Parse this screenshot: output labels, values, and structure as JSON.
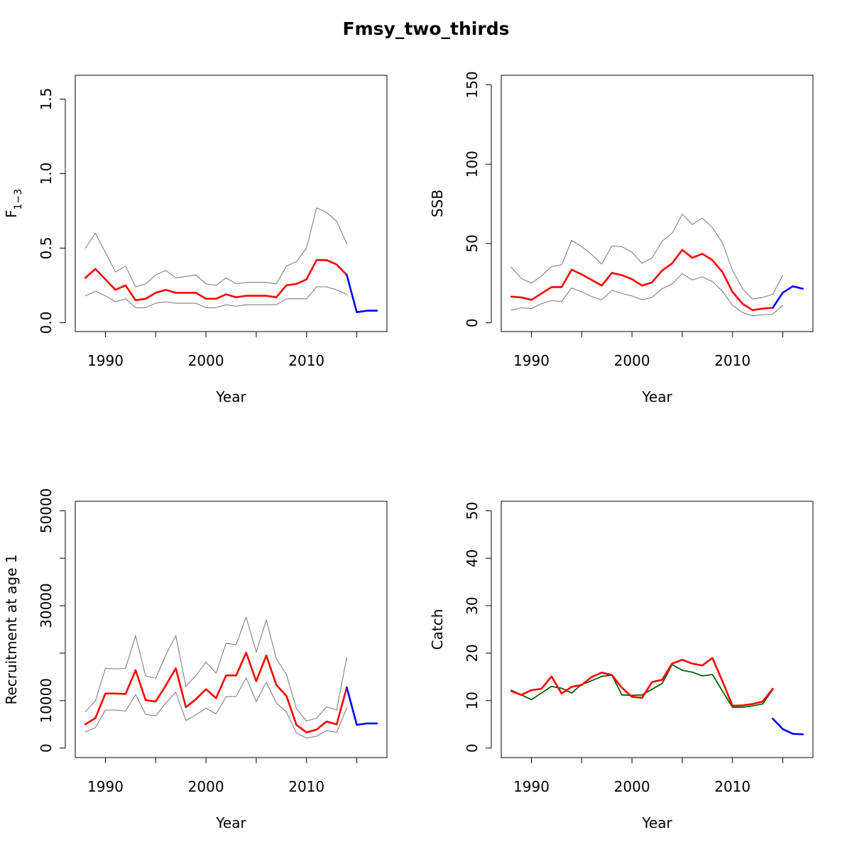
{
  "title": "Fmsy_two_thirds",
  "colors": {
    "estimate": "#ff0000",
    "ci": "#808080",
    "projection": "#0000ff",
    "observed_catch": "#006400",
    "axis": "#000000"
  },
  "chart_data": [
    {
      "type": "line",
      "xlabel": "Year",
      "ylabel": "F",
      "ylabel_subscript": "1−3",
      "xlim": [
        1987,
        2018
      ],
      "ylim": [
        -0.06,
        1.66
      ],
      "xticks": [
        1990,
        1995,
        2000,
        2005,
        2010,
        2015
      ],
      "xtick_labels": [
        "1990",
        "",
        "2000",
        "",
        "2010",
        ""
      ],
      "yticks": [
        0.0,
        0.5,
        1.0,
        1.5
      ],
      "ytick_labels": [
        "0.0",
        "0.5",
        "1.0",
        "1.5"
      ],
      "series": [
        {
          "role": "estimate",
          "x": [
            1988,
            1989,
            1990,
            1991,
            1992,
            1993,
            1994,
            1995,
            1996,
            1997,
            1998,
            1999,
            2000,
            2001,
            2002,
            2003,
            2004,
            2005,
            2006,
            2007,
            2008,
            2009,
            2010,
            2011,
            2012,
            2013,
            2014
          ],
          "values": [
            0.3,
            0.36,
            0.29,
            0.22,
            0.25,
            0.15,
            0.16,
            0.2,
            0.22,
            0.2,
            0.2,
            0.2,
            0.16,
            0.16,
            0.19,
            0.17,
            0.18,
            0.18,
            0.18,
            0.17,
            0.25,
            0.26,
            0.29,
            0.42,
            0.42,
            0.39,
            0.32
          ]
        },
        {
          "role": "ci-upper",
          "x": [
            1988,
            1989,
            1990,
            1991,
            1992,
            1993,
            1994,
            1995,
            1996,
            1997,
            1998,
            1999,
            2000,
            2001,
            2002,
            2003,
            2004,
            2005,
            2006,
            2007,
            2008,
            2009,
            2010,
            2011,
            2012,
            2013,
            2014
          ],
          "values": [
            0.5,
            0.6,
            0.47,
            0.34,
            0.38,
            0.24,
            0.26,
            0.32,
            0.35,
            0.3,
            0.31,
            0.32,
            0.26,
            0.25,
            0.3,
            0.26,
            0.27,
            0.27,
            0.27,
            0.26,
            0.38,
            0.41,
            0.5,
            0.77,
            0.74,
            0.68,
            0.53
          ]
        },
        {
          "role": "ci-lower",
          "x": [
            1988,
            1989,
            1990,
            1991,
            1992,
            1993,
            1994,
            1995,
            1996,
            1997,
            1998,
            1999,
            2000,
            2001,
            2002,
            2003,
            2004,
            2005,
            2006,
            2007,
            2008,
            2009,
            2010,
            2011,
            2012,
            2013,
            2014
          ],
          "values": [
            0.18,
            0.21,
            0.18,
            0.14,
            0.16,
            0.1,
            0.1,
            0.13,
            0.14,
            0.13,
            0.13,
            0.13,
            0.1,
            0.1,
            0.12,
            0.11,
            0.12,
            0.12,
            0.12,
            0.12,
            0.16,
            0.16,
            0.16,
            0.24,
            0.24,
            0.22,
            0.19
          ]
        },
        {
          "role": "projection",
          "x": [
            2014,
            2015,
            2016,
            2017
          ],
          "values": [
            0.32,
            0.07,
            0.08,
            0.08
          ]
        }
      ]
    },
    {
      "type": "line",
      "xlabel": "Year",
      "ylabel": "SSB",
      "xlim": [
        1987,
        2018
      ],
      "ylim": [
        -5.5,
        156
      ],
      "xticks": [
        1990,
        1995,
        2000,
        2005,
        2010,
        2015
      ],
      "xtick_labels": [
        "1990",
        "",
        "2000",
        "",
        "2010",
        ""
      ],
      "yticks": [
        0,
        50,
        100,
        150
      ],
      "ytick_labels": [
        "0",
        "50",
        "100",
        "150"
      ],
      "series": [
        {
          "role": "estimate",
          "x": [
            1988,
            1989,
            1990,
            1991,
            1992,
            1993,
            1994,
            1995,
            1996,
            1997,
            1998,
            1999,
            2000,
            2001,
            2002,
            2003,
            2004,
            2005,
            2006,
            2007,
            2008,
            2009,
            2010,
            2011,
            2012,
            2013,
            2014
          ],
          "values": [
            16.5,
            16,
            14.5,
            18.5,
            22.5,
            22.5,
            33.5,
            30.5,
            27,
            23.5,
            31.5,
            30,
            27.5,
            23.5,
            25.5,
            33,
            37.5,
            46,
            41,
            43.5,
            39.5,
            32,
            19.5,
            12,
            8,
            9,
            9.5
          ]
        },
        {
          "role": "ci-upper",
          "x": [
            1988,
            1989,
            1990,
            1991,
            1992,
            1993,
            1994,
            1995,
            1996,
            1997,
            1998,
            1999,
            2000,
            2001,
            2002,
            2003,
            2004,
            2005,
            2006,
            2007,
            2008,
            2009,
            2010,
            2011,
            2012,
            2013,
            2014,
            2015
          ],
          "values": [
            35,
            28,
            25,
            29.5,
            35.5,
            36.5,
            52,
            48,
            43,
            37,
            48.5,
            48,
            44.5,
            37.5,
            41,
            51.5,
            56.5,
            68.5,
            62,
            66,
            60,
            50.5,
            33,
            21.5,
            15,
            16,
            18,
            30
          ]
        },
        {
          "role": "ci-lower",
          "x": [
            1988,
            1989,
            1990,
            1991,
            1992,
            1993,
            1994,
            1995,
            1996,
            1997,
            1998,
            1999,
            2000,
            2001,
            2002,
            2003,
            2004,
            2005,
            2006,
            2007,
            2008,
            2009,
            2010,
            2011,
            2012,
            2013,
            2014,
            2015
          ],
          "values": [
            8,
            9.5,
            9,
            12,
            14,
            13.5,
            22,
            19.5,
            16.5,
            14.5,
            20.5,
            18.5,
            17,
            14.5,
            16,
            21.5,
            24.5,
            31,
            27,
            29,
            26,
            20,
            11,
            6.5,
            4.5,
            5,
            5.5,
            11
          ]
        },
        {
          "role": "projection",
          "x": [
            2014,
            2015,
            2016,
            2017
          ],
          "values": [
            9.5,
            19,
            23,
            21.5
          ]
        }
      ]
    },
    {
      "type": "line",
      "xlabel": "Year",
      "ylabel": "Recruitment at age 1",
      "xlim": [
        1987,
        2018
      ],
      "ylim": [
        -2000,
        52000
      ],
      "xticks": [
        1990,
        1995,
        2000,
        2005,
        2010,
        2015
      ],
      "xtick_labels": [
        "1990",
        "",
        "2000",
        "",
        "2010",
        ""
      ],
      "yticks": [
        0,
        10000,
        20000,
        30000,
        40000,
        50000
      ],
      "ytick_labels": [
        "0",
        "10000",
        "",
        "30000",
        "",
        "50000"
      ],
      "series": [
        {
          "role": "estimate",
          "x": [
            1988,
            1989,
            1990,
            1991,
            1992,
            1993,
            1994,
            1995,
            1996,
            1997,
            1998,
            1999,
            2000,
            2001,
            2002,
            2003,
            2004,
            2005,
            2006,
            2007,
            2008,
            2009,
            2010,
            2011,
            2012,
            2013,
            2014
          ],
          "values": [
            5000,
            6300,
            11500,
            11500,
            11400,
            16400,
            10100,
            9800,
            13200,
            16800,
            8600,
            10300,
            12400,
            10500,
            15300,
            15300,
            20100,
            14100,
            19500,
            13300,
            11000,
            4900,
            3300,
            3900,
            5600,
            5000,
            12800
          ]
        },
        {
          "role": "ci-upper",
          "x": [
            1988,
            1989,
            1990,
            1991,
            1992,
            1993,
            1994,
            1995,
            1996,
            1997,
            1998,
            1999,
            2000,
            2001,
            2002,
            2003,
            2004,
            2005,
            2006,
            2007,
            2008,
            2009,
            2010,
            2011,
            2012,
            2013,
            2014
          ],
          "values": [
            7700,
            9900,
            16800,
            16700,
            16800,
            23700,
            15200,
            14700,
            19600,
            23700,
            13000,
            15300,
            18100,
            15800,
            22100,
            21800,
            27600,
            20200,
            27000,
            18800,
            15500,
            8300,
            5700,
            6300,
            8700,
            8000,
            19100
          ]
        },
        {
          "role": "ci-lower",
          "x": [
            1988,
            1989,
            1990,
            1991,
            1992,
            1993,
            1994,
            1995,
            1996,
            1997,
            1998,
            1999,
            2000,
            2001,
            2002,
            2003,
            2004,
            2005,
            2006,
            2007,
            2008,
            2009,
            2010,
            2011,
            2012,
            2013,
            2014
          ],
          "values": [
            3400,
            4300,
            8000,
            8000,
            7800,
            11300,
            7100,
            6800,
            9500,
            11800,
            5800,
            7000,
            8400,
            7200,
            10800,
            10900,
            14800,
            9800,
            13900,
            9500,
            7600,
            3200,
            2100,
            2500,
            3700,
            3300,
            8500
          ]
        },
        {
          "role": "projection",
          "x": [
            2014,
            2015,
            2016,
            2017
          ],
          "values": [
            12800,
            4900,
            5200,
            5200
          ]
        }
      ]
    },
    {
      "type": "line",
      "xlabel": "Year",
      "ylabel": "Catch",
      "xlim": [
        1987,
        2018
      ],
      "ylim": [
        -2,
        52
      ],
      "xticks": [
        1990,
        1995,
        2000,
        2005,
        2010,
        2015
      ],
      "xtick_labels": [
        "1990",
        "",
        "2000",
        "",
        "2010",
        ""
      ],
      "yticks": [
        0,
        10,
        20,
        30,
        40,
        50
      ],
      "ytick_labels": [
        "0",
        "10",
        "20",
        "30",
        "40",
        "50"
      ],
      "series": [
        {
          "role": "observed",
          "x": [
            1988,
            1989,
            1990,
            1991,
            1992,
            1993,
            1994,
            1995,
            1996,
            1997,
            1998,
            1999,
            2000,
            2001,
            2002,
            2003,
            2004,
            2005,
            2006,
            2007,
            2008,
            2009,
            2010,
            2011,
            2012,
            2013,
            2014
          ],
          "values": [
            12.2,
            11.2,
            10.2,
            11.6,
            13,
            12.6,
            11.6,
            13.4,
            14.2,
            15.1,
            15.4,
            11.2,
            11.1,
            11.2,
            12.4,
            13.6,
            17.6,
            16.4,
            16,
            15.2,
            15.5,
            12,
            8.6,
            8.6,
            8.9,
            9.3,
            12.3
          ]
        },
        {
          "role": "estimate",
          "x": [
            1988,
            1989,
            1990,
            1991,
            1992,
            1993,
            1994,
            1995,
            1996,
            1997,
            1998,
            1999,
            2000,
            2001,
            2002,
            2003,
            2004,
            2005,
            2006,
            2007,
            2008,
            2009,
            2010,
            2011,
            2012,
            2013,
            2014
          ],
          "values": [
            12,
            11.2,
            12.2,
            12.5,
            15.1,
            11.5,
            12.9,
            13.3,
            15,
            15.9,
            15.4,
            12.7,
            10.8,
            10.6,
            13.9,
            14.4,
            17.8,
            18.6,
            17.8,
            17.4,
            19,
            14.1,
            8.9,
            9,
            9.3,
            9.8,
            12.5
          ]
        },
        {
          "role": "projection",
          "x": [
            2014,
            2015,
            2016,
            2017
          ],
          "values": [
            6.2,
            4,
            3,
            2.9
          ]
        }
      ]
    }
  ]
}
